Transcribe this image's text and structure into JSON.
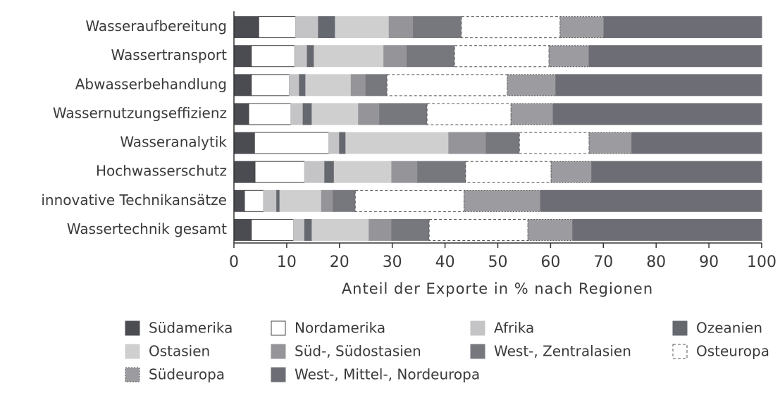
{
  "chart_data": {
    "type": "stacked_barh",
    "xlabel": "Anteil der Exporte in % nach Regionen",
    "categories": [
      "Wasseraufbereitung",
      "Wassertransport",
      "Abwasserbehandlung",
      "Wassernutzungseffizienz",
      "Wasseranalytik",
      "Hochwasserschutz",
      "innovative Technikansätze",
      "Wassertechnik gesamt"
    ],
    "series": [
      {
        "name": "Südamerika",
        "color": "#4a4c52",
        "values": [
          4.7,
          3.3,
          3.3,
          2.8,
          3.9,
          4.0,
          2.0,
          3.3
        ]
      },
      {
        "name": "Nordamerika",
        "color": "#ffffff",
        "values": [
          7.0,
          8.2,
          7.2,
          8.0,
          14.1,
          9.4,
          3.6,
          8.0
        ]
      },
      {
        "name": "Afrika",
        "color": "#c4c4c6",
        "values": [
          4.3,
          2.4,
          1.9,
          2.3,
          2.0,
          3.8,
          2.5,
          2.1
        ]
      },
      {
        "name": "Ozeanien",
        "color": "#66686f",
        "values": [
          3.2,
          1.3,
          1.2,
          1.7,
          1.2,
          1.8,
          0.6,
          1.4
        ]
      },
      {
        "name": "Ostasien",
        "color": "#cfcfd0",
        "values": [
          10.2,
          13.2,
          8.6,
          8.8,
          19.5,
          10.9,
          7.9,
          10.8
        ]
      },
      {
        "name": "Süd-, Südostasien",
        "color": "#949499",
        "values": [
          4.6,
          4.4,
          2.8,
          4.0,
          7.1,
          4.9,
          2.2,
          4.3
        ]
      },
      {
        "name": "West-, Zentralasien",
        "color": "#77787e",
        "values": [
          9.1,
          9.0,
          4.0,
          9.0,
          6.3,
          9.1,
          4.2,
          7.1
        ]
      },
      {
        "name": "Osteuropa",
        "color": "#ffffff",
        "border": "dashed",
        "values": [
          18.7,
          17.9,
          22.8,
          15.9,
          13.2,
          16.2,
          20.6,
          18.7
        ]
      },
      {
        "name": "Südeuropa",
        "color": "#9c9ca0",
        "border": "dotted",
        "values": [
          8.3,
          7.6,
          9.2,
          8.0,
          8.1,
          7.7,
          14.5,
          8.5
        ]
      },
      {
        "name": "West-, Mittel-, Nordeuropa",
        "color": "#6d6e75",
        "values": [
          29.9,
          32.7,
          39.0,
          39.5,
          24.6,
          32.2,
          41.9,
          35.8
        ]
      }
    ],
    "xlim": [
      0,
      100
    ],
    "xticks": [
      0,
      10,
      20,
      30,
      40,
      50,
      60,
      70,
      80,
      90,
      100
    ]
  }
}
